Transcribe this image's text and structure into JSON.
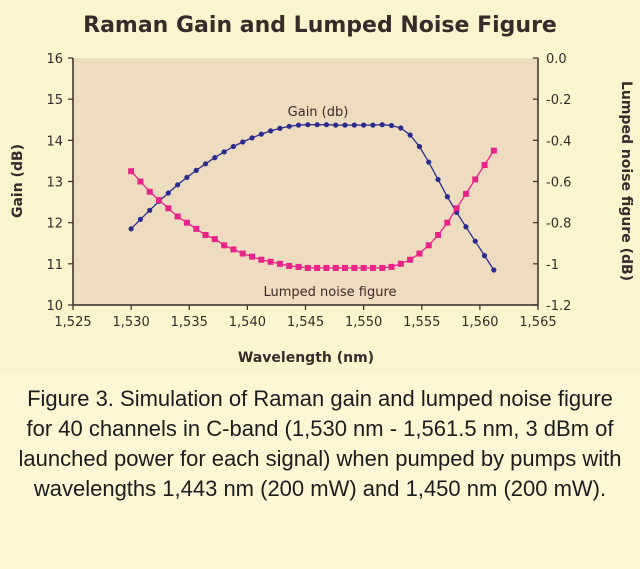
{
  "chart_data": {
    "type": "line",
    "title": "Raman Gain and Lumped Noise Figure",
    "xlabel": "Wavelength (nm)",
    "ylabel_left": "Gain (dB)",
    "ylabel_right": "Lumped noise figure (dB)",
    "xlim": [
      1525,
      1565
    ],
    "ylim_left": [
      10,
      16
    ],
    "ylim_right": [
      -1.2,
      0.0
    ],
    "x_ticks": [
      "1,525",
      "1,530",
      "1,535",
      "1,540",
      "1,545",
      "1,550",
      "1,555",
      "1,560",
      "1,565"
    ],
    "y_ticks_left": [
      "10",
      "11",
      "12",
      "13",
      "14",
      "15",
      "16"
    ],
    "y_ticks_right": [
      "0.0",
      "-0.2",
      "-0.4",
      "-0.6",
      "-0.8",
      "-1",
      "-1.2"
    ],
    "grid": false,
    "annotations": {
      "gain_label": "Gain (db)",
      "noise_label": "Lumped noise figure"
    },
    "colors": {
      "gain": "#2b2b8f",
      "noise": "#e8248a",
      "plot_bg": "#eedcc0"
    },
    "series": [
      {
        "axis": "left",
        "x": [
          1530,
          1530.8,
          1531.6,
          1532.4,
          1533.2,
          1534,
          1534.8,
          1535.6,
          1536.4,
          1537.2,
          1538,
          1538.8,
          1539.6,
          1540.4,
          1541.2,
          1542,
          1542.8,
          1543.6,
          1544.4,
          1545.2,
          1546,
          1546.8,
          1547.6,
          1548.4,
          1549.2,
          1550,
          1550.8,
          1551.6,
          1552.4,
          1553.2,
          1554,
          1554.8,
          1555.6,
          1556.4,
          1557.2,
          1558,
          1558.8,
          1559.6,
          1560.4,
          1561.2
        ],
        "values": [
          11.85,
          12.08,
          12.3,
          12.52,
          12.72,
          12.92,
          13.1,
          13.27,
          13.43,
          13.58,
          13.72,
          13.85,
          13.96,
          14.06,
          14.15,
          14.23,
          14.29,
          14.34,
          14.37,
          14.38,
          14.38,
          14.38,
          14.37,
          14.37,
          14.37,
          14.37,
          14.37,
          14.38,
          14.36,
          14.3,
          14.13,
          13.85,
          13.47,
          13.05,
          12.63,
          12.25,
          11.9,
          11.55,
          11.2,
          10.85
        ]
      },
      {
        "axis": "right",
        "x": [
          1530,
          1530.8,
          1531.6,
          1532.4,
          1533.2,
          1534,
          1534.8,
          1535.6,
          1536.4,
          1537.2,
          1538,
          1538.8,
          1539.6,
          1540.4,
          1541.2,
          1542,
          1542.8,
          1543.6,
          1544.4,
          1545.2,
          1546,
          1546.8,
          1547.6,
          1548.4,
          1549.2,
          1550,
          1550.8,
          1551.6,
          1552.4,
          1553.2,
          1554,
          1554.8,
          1555.6,
          1556.4,
          1557.2,
          1558,
          1558.8,
          1559.6,
          1560.4,
          1561.2
        ],
        "values": [
          -0.55,
          -0.6,
          -0.65,
          -0.69,
          -0.73,
          -0.77,
          -0.8,
          -0.83,
          -0.86,
          -0.88,
          -0.91,
          -0.93,
          -0.95,
          -0.965,
          -0.98,
          -0.99,
          -1.0,
          -1.01,
          -1.015,
          -1.02,
          -1.02,
          -1.02,
          -1.02,
          -1.02,
          -1.02,
          -1.02,
          -1.02,
          -1.02,
          -1.015,
          -1.0,
          -0.98,
          -0.95,
          -0.91,
          -0.86,
          -0.8,
          -0.73,
          -0.66,
          -0.59,
          -0.52,
          -0.45
        ]
      }
    ]
  },
  "caption": "Figure 3. Simulation of Raman gain and lumped noise figure for 40 channels in C-band (1,530 nm - 1,561.5 nm, 3 dBm of launched power for each signal) when pumped by pumps with wavelengths 1,443 nm (200 mW) and 1,450 nm (200 mW)."
}
